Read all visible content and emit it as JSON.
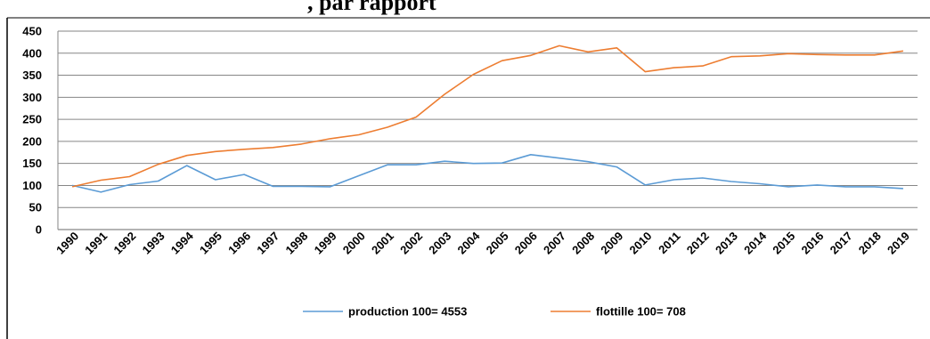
{
  "header": {
    "partial_title": ", par rapport"
  },
  "colors": {
    "production": "#5b9bd5",
    "flottille": "#ed7d31",
    "grid": "#868686",
    "axis": "#000000"
  },
  "chart_data": {
    "type": "line",
    "title": "",
    "xlabel": "",
    "ylabel": "",
    "ylim": [
      0,
      450
    ],
    "yticks": [
      0,
      50,
      100,
      150,
      200,
      250,
      300,
      350,
      400,
      450
    ],
    "grid": true,
    "legend_position": "bottom",
    "x": [
      "1990",
      "1991",
      "1992",
      "1993",
      "1994",
      "1995",
      "1996",
      "1997",
      "1998",
      "1999",
      "2000",
      "2001",
      "2002",
      "2003",
      "2004",
      "2005",
      "2006",
      "2007",
      "2008",
      "2009",
      "2010",
      "2011",
      "2012",
      "2013",
      "2014",
      "2015",
      "2016",
      "2017",
      "2018",
      "2019"
    ],
    "series": [
      {
        "name": "production 100= 4553",
        "color_key": "production",
        "values": [
          100,
          85,
          102,
          110,
          145,
          113,
          125,
          98,
          98,
          97,
          122,
          147,
          147,
          155,
          150,
          151,
          170,
          162,
          154,
          142,
          101,
          113,
          117,
          109,
          104,
          97,
          101,
          97,
          97,
          93
        ]
      },
      {
        "name": "flottille 100= 708",
        "color_key": "flottille",
        "values": [
          97,
          112,
          120,
          148,
          168,
          177,
          182,
          186,
          194,
          206,
          215,
          232,
          255,
          307,
          352,
          383,
          395,
          417,
          403,
          412,
          358,
          367,
          371,
          392,
          394,
          399,
          397,
          396,
          396,
          405
        ]
      }
    ]
  }
}
